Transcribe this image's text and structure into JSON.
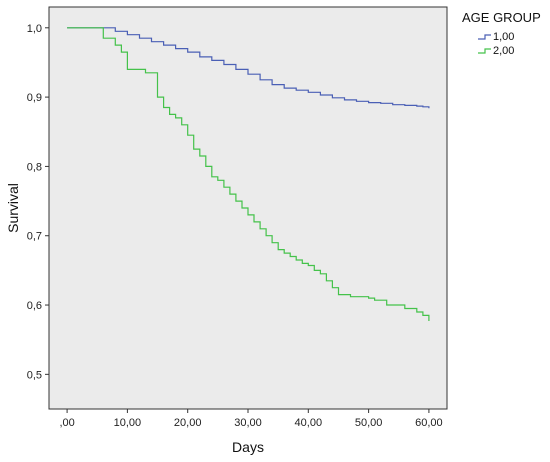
{
  "chart_data": {
    "type": "line",
    "step": true,
    "xlabel": "Days",
    "ylabel": "Survival",
    "xlim": [
      -3,
      63
    ],
    "ylim": [
      0.45,
      1.03
    ],
    "xticks": [
      0,
      10,
      20,
      30,
      40,
      50,
      60
    ],
    "xtick_labels": [
      ",00",
      "10,00",
      "20,00",
      "30,00",
      "40,00",
      "50,00",
      "60,00"
    ],
    "yticks": [
      0.5,
      0.6,
      0.7,
      0.8,
      0.9,
      1.0
    ],
    "ytick_labels": [
      "0,5",
      "0,6",
      "0,7",
      "0,8",
      "0,9",
      "1,0"
    ],
    "grid": false,
    "background": "#ebebeb",
    "legend": {
      "title": "AGE GROUP",
      "placement": "top-right-outside"
    },
    "series": [
      {
        "name": "1,00",
        "color": "#4a5fb5",
        "x": [
          0,
          6,
          8,
          10,
          12,
          14,
          16,
          18,
          20,
          22,
          24,
          26,
          28,
          30,
          32,
          34,
          36,
          38,
          40,
          42,
          44,
          46,
          48,
          50,
          52,
          54,
          56,
          58,
          59,
          60
        ],
        "y": [
          1.0,
          1.0,
          0.995,
          0.99,
          0.985,
          0.98,
          0.975,
          0.97,
          0.965,
          0.958,
          0.953,
          0.947,
          0.94,
          0.933,
          0.925,
          0.918,
          0.913,
          0.91,
          0.907,
          0.903,
          0.899,
          0.896,
          0.894,
          0.892,
          0.891,
          0.889,
          0.888,
          0.887,
          0.886,
          0.884
        ]
      },
      {
        "name": "2,00",
        "color": "#44c24a",
        "x": [
          0,
          6,
          8,
          9,
          10,
          13,
          15,
          16,
          17,
          18,
          19,
          20,
          21,
          22,
          23,
          24,
          25,
          26,
          27,
          28,
          29,
          30,
          31,
          32,
          33,
          34,
          35,
          36,
          37,
          38,
          39,
          40,
          41,
          42,
          43,
          44,
          45,
          47,
          50,
          51,
          53,
          56,
          58,
          59,
          60
        ],
        "y": [
          1.0,
          0.985,
          0.975,
          0.965,
          0.94,
          0.935,
          0.9,
          0.885,
          0.875,
          0.87,
          0.86,
          0.845,
          0.825,
          0.815,
          0.8,
          0.785,
          0.78,
          0.77,
          0.76,
          0.75,
          0.74,
          0.73,
          0.72,
          0.71,
          0.7,
          0.69,
          0.68,
          0.675,
          0.67,
          0.665,
          0.66,
          0.657,
          0.65,
          0.645,
          0.635,
          0.625,
          0.615,
          0.612,
          0.61,
          0.607,
          0.6,
          0.595,
          0.59,
          0.585,
          0.577
        ]
      }
    ]
  }
}
